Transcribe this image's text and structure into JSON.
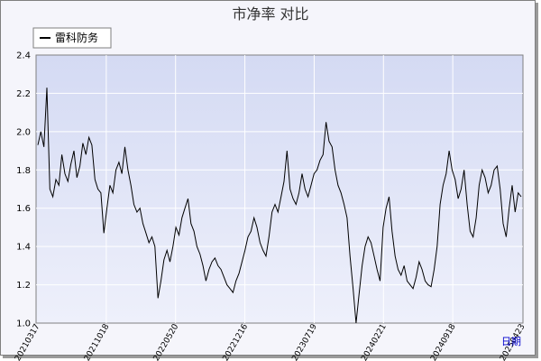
{
  "chart_data": {
    "type": "line",
    "title": "市净率  对比",
    "xlabel": "日期",
    "ylabel": "",
    "ylim": [
      1.0,
      2.4
    ],
    "yticks": [
      "1.0",
      "1.2",
      "1.4",
      "1.6",
      "1.8",
      "2.0",
      "2.2",
      "2.4"
    ],
    "xticks": [
      "20210317",
      "20211018",
      "20220520",
      "20221216",
      "20230719",
      "20240221",
      "20240918",
      "20250423"
    ],
    "grid": true,
    "legend_position": "top-left",
    "series": [
      {
        "name": "雷科防务",
        "color": "#000000",
        "values": [
          1.93,
          2.0,
          1.92,
          2.23,
          1.7,
          1.66,
          1.75,
          1.72,
          1.88,
          1.78,
          1.74,
          1.83,
          1.9,
          1.76,
          1.82,
          1.94,
          1.88,
          1.97,
          1.93,
          1.75,
          1.7,
          1.68,
          1.47,
          1.6,
          1.72,
          1.68,
          1.8,
          1.84,
          1.78,
          1.92,
          1.8,
          1.72,
          1.62,
          1.58,
          1.6,
          1.52,
          1.47,
          1.42,
          1.45,
          1.4,
          1.13,
          1.22,
          1.33,
          1.38,
          1.32,
          1.4,
          1.5,
          1.46,
          1.55,
          1.6,
          1.65,
          1.52,
          1.48,
          1.4,
          1.36,
          1.3,
          1.22,
          1.28,
          1.32,
          1.34,
          1.3,
          1.28,
          1.24,
          1.2,
          1.18,
          1.16,
          1.22,
          1.26,
          1.32,
          1.38,
          1.45,
          1.48,
          1.55,
          1.5,
          1.42,
          1.38,
          1.35,
          1.45,
          1.58,
          1.62,
          1.58,
          1.66,
          1.74,
          1.9,
          1.7,
          1.65,
          1.62,
          1.68,
          1.78,
          1.7,
          1.66,
          1.72,
          1.78,
          1.8,
          1.85,
          1.88,
          2.05,
          1.95,
          1.92,
          1.8,
          1.72,
          1.68,
          1.62,
          1.55,
          1.35,
          1.18,
          1.0,
          1.15,
          1.3,
          1.4,
          1.45,
          1.42,
          1.35,
          1.28,
          1.22,
          1.5,
          1.6,
          1.66,
          1.48,
          1.35,
          1.28,
          1.25,
          1.3,
          1.22,
          1.2,
          1.18,
          1.24,
          1.32,
          1.28,
          1.22,
          1.2,
          1.19,
          1.28,
          1.4,
          1.62,
          1.72,
          1.78,
          1.9,
          1.8,
          1.75,
          1.65,
          1.7,
          1.8,
          1.62,
          1.48,
          1.45,
          1.55,
          1.72,
          1.8,
          1.76,
          1.68,
          1.72,
          1.8,
          1.82,
          1.7,
          1.52,
          1.45,
          1.6,
          1.72,
          1.58,
          1.68,
          1.66
        ]
      }
    ]
  }
}
